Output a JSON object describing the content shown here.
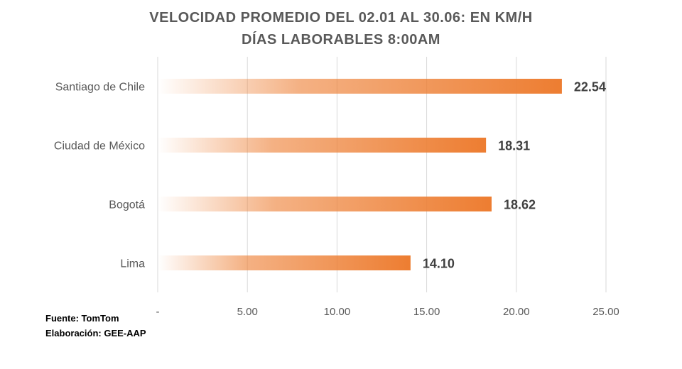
{
  "chart_data": {
    "type": "bar",
    "orientation": "horizontal",
    "title": "VELOCIDAD PROMEDIO DEL 02.01 AL 30.06: EN KM/H",
    "subtitle": "DÍAS LABORABLES 8:00AM",
    "categories": [
      "Santiago de Chile",
      "Ciudad de México",
      "Bogotá",
      "Lima"
    ],
    "values": [
      22.54,
      18.31,
      18.62,
      14.1
    ],
    "value_labels": [
      "22.54",
      "18.31",
      "18.62",
      "14.10"
    ],
    "x_ticks": [
      "-",
      "5.00",
      "10.00",
      "15.00",
      "20.00",
      "25.00"
    ],
    "x_tick_values": [
      0,
      5,
      10,
      15,
      20,
      25
    ],
    "xlim": [
      0,
      25
    ],
    "grid": "vertical",
    "bar_color": "#ED7D31",
    "legend": "none"
  },
  "footer": {
    "source": "Fuente: TomTom",
    "credit": "Elaboración: GEE-AAP"
  }
}
